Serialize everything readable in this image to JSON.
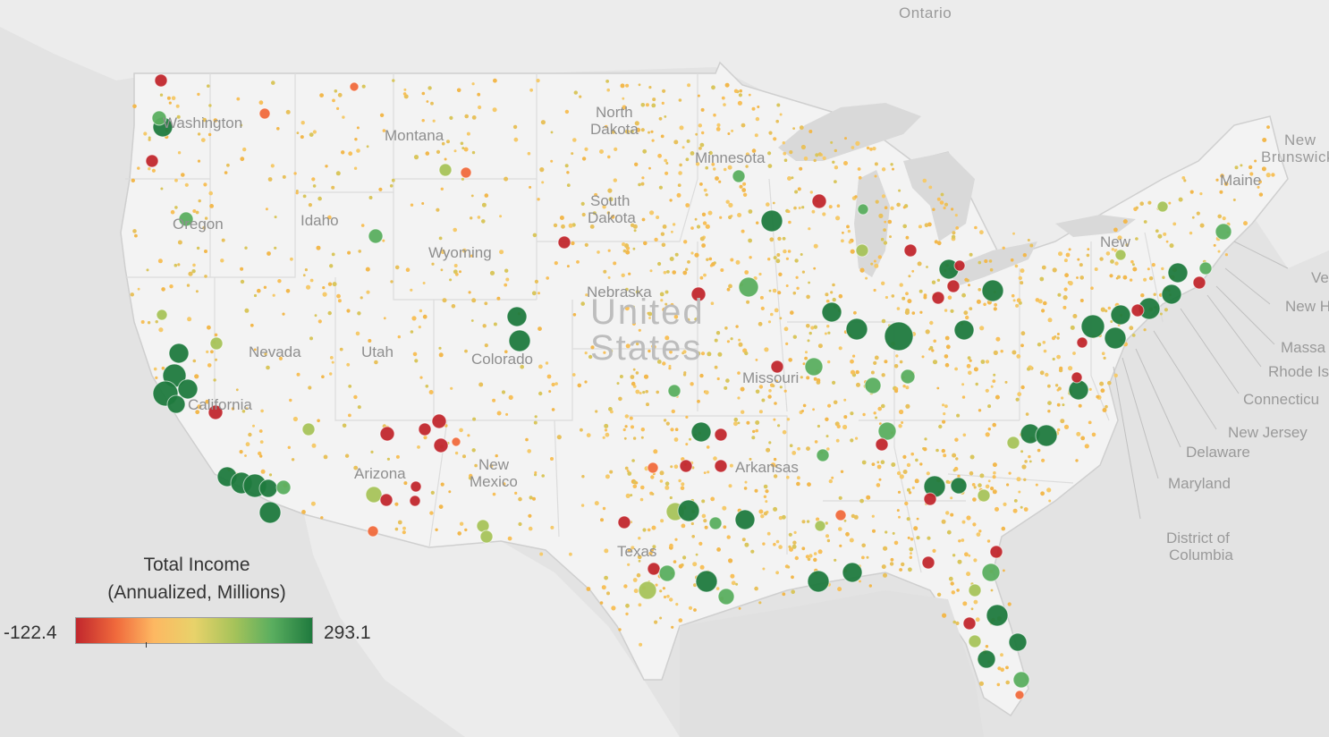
{
  "map": {
    "country_label_1": "United",
    "country_label_2": "States",
    "regions": [
      {
        "id": "ontario",
        "name": "Ontario"
      },
      {
        "id": "washington",
        "name": "Washington"
      },
      {
        "id": "oregon",
        "name": "Oregon"
      },
      {
        "id": "idaho",
        "name": "Idaho"
      },
      {
        "id": "montana",
        "name": "Montana"
      },
      {
        "id": "wyoming",
        "name": "Wyoming"
      },
      {
        "id": "nevada",
        "name": "Nevada"
      },
      {
        "id": "utah",
        "name": "Utah"
      },
      {
        "id": "colorado",
        "name": "Colorado"
      },
      {
        "id": "california",
        "name": "California"
      },
      {
        "id": "arizona",
        "name": "Arizona"
      },
      {
        "id": "new-mexico-1",
        "name": "New"
      },
      {
        "id": "new-mexico-2",
        "name": "Mexico"
      },
      {
        "id": "north-dakota-1",
        "name": "North"
      },
      {
        "id": "north-dakota-2",
        "name": "Dakota"
      },
      {
        "id": "south-dakota-1",
        "name": "South"
      },
      {
        "id": "south-dakota-2",
        "name": "Dakota"
      },
      {
        "id": "nebraska",
        "name": "Nebraska"
      },
      {
        "id": "minnesota",
        "name": "Minnesota"
      },
      {
        "id": "missouri",
        "name": "Missouri"
      },
      {
        "id": "arkansas",
        "name": "Arkansas"
      },
      {
        "id": "texas",
        "name": "Texas"
      },
      {
        "id": "new-brunswick-1",
        "name": "New"
      },
      {
        "id": "new-brunswick-2",
        "name": "Brunswick"
      },
      {
        "id": "maine",
        "name": "Maine"
      },
      {
        "id": "new-york-1",
        "name": "New"
      }
    ],
    "callouts": [
      {
        "id": "vermont",
        "name": "Ve"
      },
      {
        "id": "new-hampshire",
        "name": "New H"
      },
      {
        "id": "massachusetts",
        "name": "Massa"
      },
      {
        "id": "rhode-island",
        "name": "Rhode Is"
      },
      {
        "id": "connecticut",
        "name": "Connecticu"
      },
      {
        "id": "new-jersey",
        "name": "New Jersey"
      },
      {
        "id": "delaware",
        "name": "Delaware"
      },
      {
        "id": "maryland",
        "name": "Maryland"
      },
      {
        "id": "dc-1",
        "name": "District of"
      },
      {
        "id": "dc-2",
        "name": "Columbia"
      }
    ]
  },
  "legend": {
    "title_line1": "Total Income",
    "title_line2": "(Annualized, Millions)",
    "min": "-122.4",
    "max": "293.1",
    "min_value": -122.4,
    "max_value": 293.1,
    "colors": [
      "#c1272d",
      "#f06a3c",
      "#fdb862",
      "#e8d26a",
      "#a6c35a",
      "#5aae5f",
      "#1f7a3e"
    ]
  },
  "colors": {
    "background": "#e6e6e6",
    "land": "#f2f2f2",
    "water": "#d9d9d9",
    "border": "#cfcfcf",
    "label": "#9a9a9a"
  }
}
